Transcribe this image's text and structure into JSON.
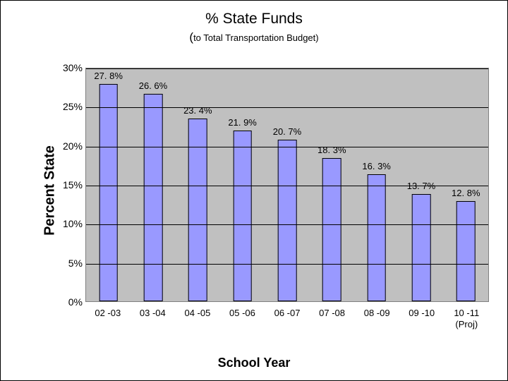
{
  "title": "% State Funds",
  "subtitle_prefix": "(",
  "subtitle_small": "to Total Transportation Budget)",
  "ylabel": "Percent State",
  "xlabel": "School Year",
  "chart": {
    "type": "bar",
    "background_color": "#c0c0c0",
    "grid_color": "#000000",
    "bar_color": "#9999ff",
    "bar_border_color": "#000000",
    "bar_width_pct": 42,
    "ymin": 0,
    "ymax": 30,
    "ytick_step": 5,
    "yticks": [
      "0%",
      "5%",
      "10%",
      "15%",
      "20%",
      "25%",
      "30%"
    ],
    "label_fontsize": 13,
    "categories": [
      "02 -03",
      "03 -04",
      "04 -05",
      "05 -06",
      "06 -07",
      "07 -08",
      "08 -09",
      "09 -10",
      "10 -11\n(Proj)"
    ],
    "values": [
      27.8,
      26.6,
      23.4,
      21.9,
      20.7,
      18.3,
      16.3,
      13.7,
      12.8
    ],
    "value_labels": [
      "27. 8%",
      "26. 6%",
      "23. 4%",
      "21. 9%",
      "20. 7%",
      "18. 3%",
      "16. 3%",
      "13. 7%",
      "12. 8%"
    ]
  }
}
